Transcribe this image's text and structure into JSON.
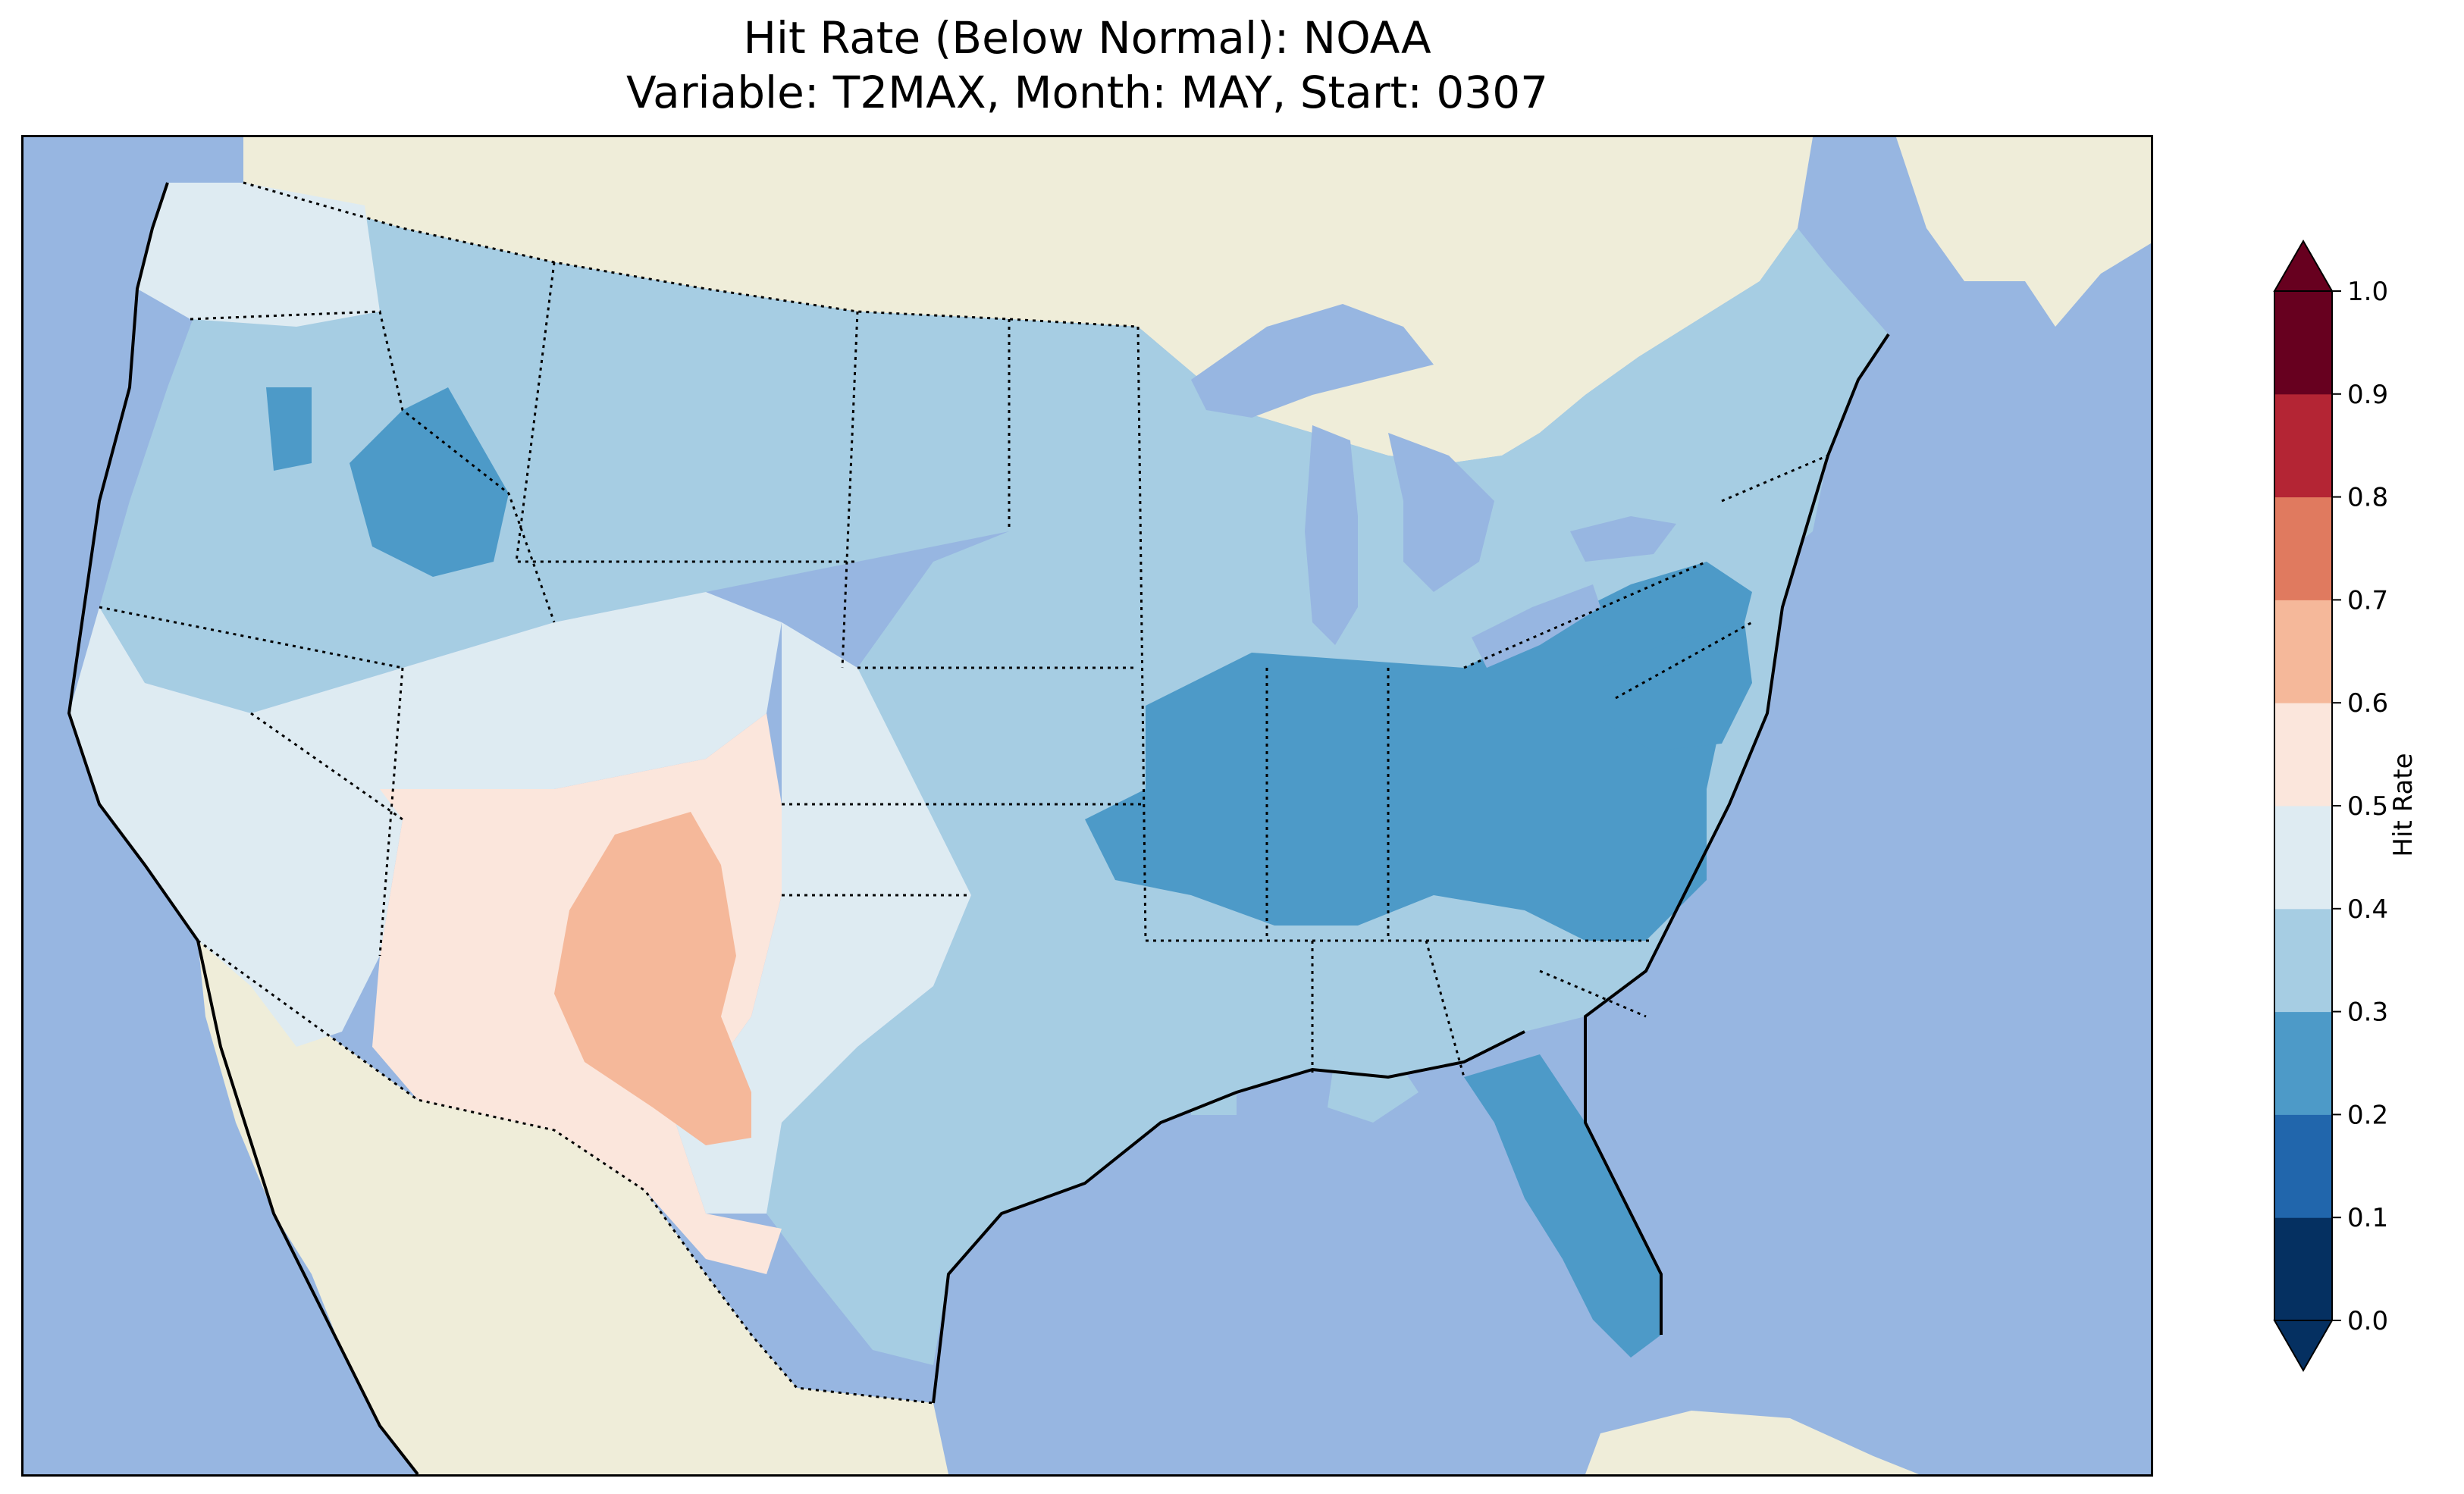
{
  "title": {
    "line1": "Hit Rate (Below Normal): NOAA",
    "line2": "Variable: T2MAX, Month: MAY, Start: 0307"
  },
  "colors": {
    "ocean": "#97b6e1",
    "land": "#efedd9",
    "lakes": "#97b6e1"
  },
  "colorbar": {
    "label": "Hit Rate",
    "ticks": [
      "0.0",
      "0.1",
      "0.2",
      "0.3",
      "0.4",
      "0.5",
      "0.6",
      "0.7",
      "0.8",
      "0.9",
      "1.0"
    ],
    "bins": [
      {
        "range": [
          0.0,
          0.1
        ],
        "color": "#053061"
      },
      {
        "range": [
          0.1,
          0.2
        ],
        "color": "#2166ac"
      },
      {
        "range": [
          0.2,
          0.3
        ],
        "color": "#4d9ac8"
      },
      {
        "range": [
          0.3,
          0.4
        ],
        "color": "#a6cde3"
      },
      {
        "range": [
          0.4,
          0.5
        ],
        "color": "#deebf2"
      },
      {
        "range": [
          0.5,
          0.6
        ],
        "color": "#fbe6dc"
      },
      {
        "range": [
          0.6,
          0.7
        ],
        "color": "#f5b89a"
      },
      {
        "range": [
          0.7,
          0.8
        ],
        "color": "#e07a5f"
      },
      {
        "range": [
          0.8,
          0.9
        ],
        "color": "#b42534"
      },
      {
        "range": [
          0.9,
          1.0
        ],
        "color": "#67001f"
      }
    ],
    "extend": "both"
  },
  "regions": [
    {
      "name": "pacific-northwest",
      "value": 0.45
    },
    {
      "name": "western-interior",
      "value": 0.35
    },
    {
      "name": "idaho-oregon-pockets",
      "value": 0.25
    },
    {
      "name": "great-basin-california",
      "value": 0.45
    },
    {
      "name": "southwest-desert",
      "value": 0.55
    },
    {
      "name": "new-mexico-west-texas-core",
      "value": 0.65
    },
    {
      "name": "southern-plains",
      "value": 0.45
    },
    {
      "name": "central-plains",
      "value": 0.35
    },
    {
      "name": "ohio-valley",
      "value": 0.25
    },
    {
      "name": "mid-atlantic",
      "value": 0.25
    },
    {
      "name": "northeast",
      "value": 0.35
    },
    {
      "name": "southeast",
      "value": 0.35
    },
    {
      "name": "florida-peninsula",
      "value": 0.25
    }
  ]
}
